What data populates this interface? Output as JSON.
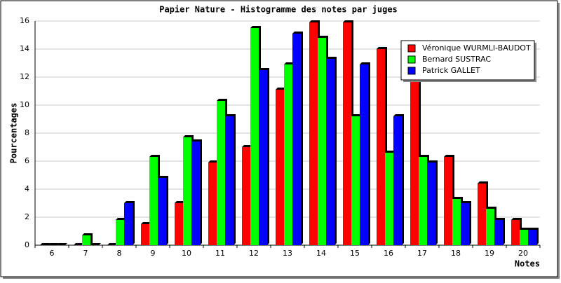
{
  "chart_data": {
    "type": "bar",
    "title": "Papier Nature - Histogramme des notes par juges",
    "x_label": "Notes",
    "y_label": "Pourcentages",
    "categories": [
      "6",
      "7",
      "8",
      "9",
      "10",
      "11",
      "12",
      "13",
      "14",
      "15",
      "16",
      "17",
      "18",
      "19",
      "20"
    ],
    "series": [
      {
        "name": "Véronique WURMLI-BAUDOT",
        "color": "#ff0000",
        "values": [
          0,
          0,
          0,
          1.5,
          3.0,
          5.9,
          7.0,
          11.1,
          15.9,
          15.9,
          14.0,
          12.0,
          6.3,
          4.4,
          1.8
        ]
      },
      {
        "name": "Bernard SUSTRAC",
        "color": "#00ff00",
        "values": [
          0,
          0.7,
          1.8,
          6.3,
          7.7,
          10.3,
          15.5,
          12.9,
          14.8,
          9.2,
          6.6,
          6.3,
          3.3,
          2.6,
          1.1
        ]
      },
      {
        "name": "Patrick GALLET",
        "color": "#0000ff",
        "values": [
          0,
          0,
          3.0,
          4.8,
          7.4,
          9.2,
          12.5,
          15.1,
          13.3,
          12.9,
          9.2,
          5.9,
          3.0,
          1.8,
          1.1
        ]
      }
    ],
    "ylim": [
      0,
      16
    ],
    "yticks": [
      0,
      2,
      4,
      6,
      8,
      10,
      12,
      14,
      16
    ],
    "grid": true,
    "legend": "top-right"
  }
}
